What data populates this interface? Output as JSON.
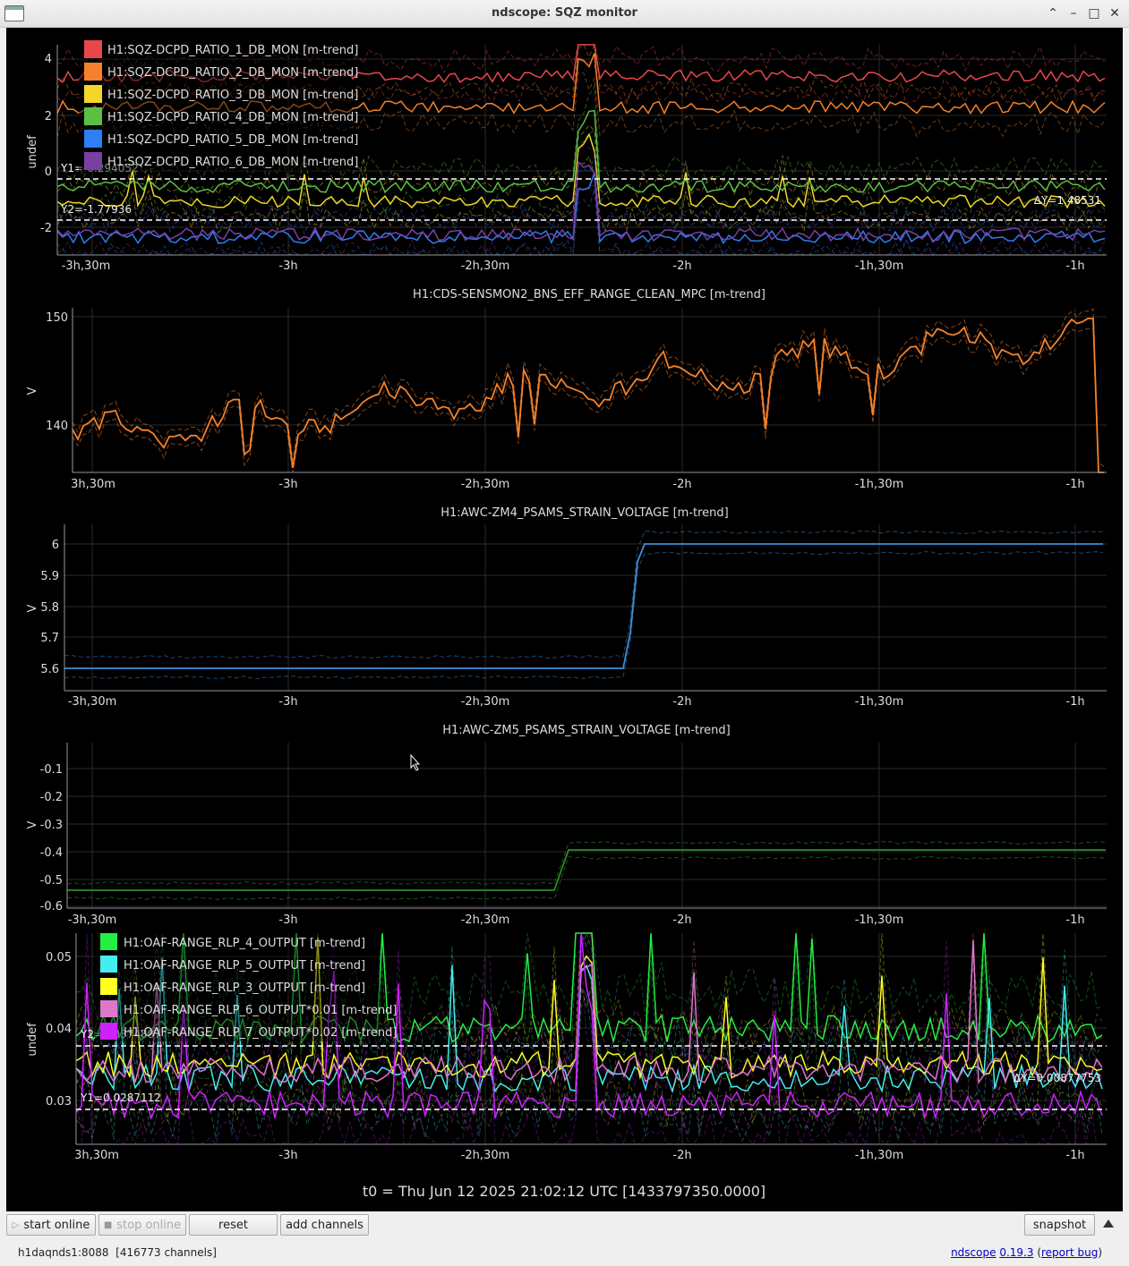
{
  "window": {
    "title": "ndscope: SQZ monitor"
  },
  "x_ticks": [
    "-3h,30m",
    "-3h",
    "-2h,30m",
    "-2h",
    "-1h,30m",
    "-1h"
  ],
  "x_ticks_cropped": [
    "3h,30m",
    "-3h",
    "-2h,30m",
    "-2h",
    "-1h,30m",
    "-1h"
  ],
  "x_ticks_cropped2": [
    "3h,30m",
    "-3h",
    "-2h,30m",
    "-2h",
    "-1h,30m",
    "-1h"
  ],
  "plot1": {
    "ylabel": "undef",
    "yticks": [
      "4",
      "2",
      "0",
      "-2"
    ],
    "legend": [
      {
        "label": "H1:SQZ-DCPD_RATIO_1_DB_MON [m-trend]",
        "color": "#e8474a"
      },
      {
        "label": "H1:SQZ-DCPD_RATIO_2_DB_MON [m-trend]",
        "color": "#f5822a"
      },
      {
        "label": "H1:SQZ-DCPD_RATIO_3_DB_MON [m-trend]",
        "color": "#f4d62a"
      },
      {
        "label": "H1:SQZ-DCPD_RATIO_4_DB_MON [m-trend]",
        "color": "#5bbf45"
      },
      {
        "label": "H1:SQZ-DCPD_RATIO_5_DB_MON [m-trend]",
        "color": "#2c7ff5"
      },
      {
        "label": "H1:SQZ-DCPD_RATIO_6_DB_MON [m-trend]",
        "color": "#7a3fa3"
      }
    ],
    "cursor_y1": "Y1=-0.294052",
    "cursor_y2": "Y2=-1.77936",
    "delta": "ΔY=1.48531"
  },
  "plot2": {
    "title": "H1:CDS-SENSMON2_BNS_EFF_RANGE_CLEAN_MPC [m-trend]",
    "ylabel": "V",
    "yticks": [
      "150",
      "140"
    ],
    "color": "#f5822a"
  },
  "plot3": {
    "title": "H1:AWC-ZM4_PSAMS_STRAIN_VOLTAGE [m-trend]",
    "ylabel": "V",
    "yticks": [
      "6",
      "5.9",
      "5.8",
      "5.7",
      "5.6"
    ],
    "color": "#3c8fd8"
  },
  "plot4": {
    "title": "H1:AWC-ZM5_PSAMS_STRAIN_VOLTAGE [m-trend]",
    "ylabel": "V",
    "yticks": [
      "-0.1",
      "-0.2",
      "-0.3",
      "-0.4",
      "-0.5",
      "-0.6"
    ],
    "color": "#2e8a2e"
  },
  "plot5": {
    "ylabel": "undef",
    "yticks": [
      "0.05",
      "0.04",
      "0.03"
    ],
    "legend": [
      {
        "label": "H1:OAF-RANGE_RLP_4_OUTPUT [m-trend]",
        "color": "#22ee44"
      },
      {
        "label": "H1:OAF-RANGE_RLP_5_OUTPUT [m-trend]",
        "color": "#44eeee"
      },
      {
        "label": "H1:OAF-RANGE_RLP_3_OUTPUT [m-trend]",
        "color": "#ffff22"
      },
      {
        "label": "H1:OAF-RANGE_RLP_6_OUTPUT*0.01 [m-trend]",
        "color": "#dd77cc"
      },
      {
        "label": "H1:OAF-RANGE_RLP_7_OUTPUT*0.02 [m-trend]",
        "color": "#cc22ff"
      }
    ],
    "cursor_y1": "Y1=0.0287112",
    "cursor_y2": "Y2=0.0374887",
    "delta": "ΔY=0.00877753"
  },
  "t0": "t0 = Thu Jun 12 2025 21:02:12 UTC [1433797350.0000]",
  "buttons": {
    "start_online": "start online",
    "stop_online": "stop online",
    "reset": "reset",
    "add_channels": "add channels",
    "snapshot": "snapshot"
  },
  "status": {
    "server": "h1daqnds1:8088",
    "channels": "[416773 channels]",
    "app": "ndscope",
    "version": "0.19.3",
    "report": "report bug"
  }
}
